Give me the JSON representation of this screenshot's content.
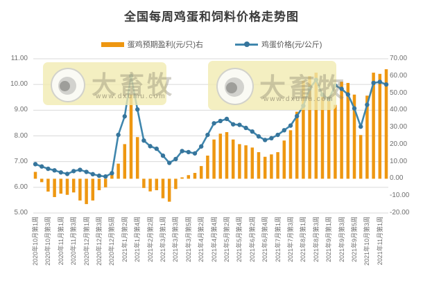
{
  "title": "全国每周鸡蛋和饲料价格走势图",
  "legend": {
    "bar_label": "蛋鸡预期盈利(元/只)右",
    "line_label": "鸡蛋价格(元/公斤)"
  },
  "watermark": {
    "brand": "大畜牧",
    "url": "www.dxumu.com"
  },
  "colors": {
    "bar": "#ee9711",
    "line": "#3f86ad",
    "marker": "#36759c",
    "grid": "#d9d9d9",
    "axis_text": "#6e6e6e",
    "title_text": "#3b3b3b",
    "watermark_bg": "#f1eab0"
  },
  "chart_data": {
    "type": "bar",
    "subtype": "combo-bar-line",
    "title": "全国每周鸡蛋和饲料价格走势图",
    "grid": true,
    "legend_position": "top",
    "x_labels": [
      "2020年10月第1周",
      "2020年10月第3周",
      "2020年11月第1周",
      "2020年11月第3周",
      "2020年12月第1周",
      "2020年12月第3周",
      "2020年12月第5周",
      "2021年1月第2周",
      "2021年1月第4周",
      "2021年2月第2周",
      "2021年3月第1周",
      "2021年3月第3周",
      "2021年3月第5周",
      "2021年4月第2周",
      "2021年4月第4周",
      "2021年5月第2周",
      "2021年5月第4周",
      "2021年6月第2周",
      "2021年6月第4周",
      "2021年7月第1周",
      "2021年7月第3周",
      "2021年8月第1周",
      "2021年8月第3周",
      "2021年9月第1周",
      "2021年9月第3周",
      "2021年9月第5周",
      "2021年10月第3周",
      "2021年11月第1周"
    ],
    "x_label_every_n_points": 2,
    "left_axis": {
      "label": "鸡蛋价格(元/公斤)",
      "min": 5,
      "max": 11,
      "ticks": [
        "11.00",
        "10.00",
        "9.00",
        "8.00",
        "7.00",
        "6.00",
        "5.00"
      ]
    },
    "right_axis": {
      "label": "蛋鸡预期盈利(元/只)",
      "min": -20,
      "max": 70,
      "ticks": [
        "70.00",
        "60.00",
        "50.00",
        "40.00",
        "30.00",
        "20.00",
        "10.00",
        "0.00",
        "-10.00",
        "-20.00"
      ]
    },
    "series": [
      {
        "name": "蛋鸡预期盈利(元/只)右",
        "type": "bar",
        "axis": "right",
        "values": [
          4.0,
          -2.0,
          -7.5,
          -10.7,
          -8.7,
          -9.4,
          -8.0,
          -12.7,
          -14.8,
          -12.7,
          -6.7,
          -5.0,
          3.4,
          8.8,
          20.2,
          49.1,
          24.3,
          -5.4,
          -7.4,
          -6.7,
          -11.4,
          -13.4,
          -6.0,
          0.8,
          2.1,
          3.4,
          7.4,
          13.5,
          22.9,
          26.3,
          27.2,
          22.9,
          20.2,
          19.5,
          18.2,
          15.5,
          12.8,
          14.2,
          15.5,
          22.3,
          28.3,
          39.1,
          57.2,
          59.9,
          61.9,
          47.8,
          45.8,
          43.1,
          56.6,
          55.9,
          49.1,
          25.5,
          48.5,
          61.9,
          61.2,
          63.9
        ]
      },
      {
        "name": "鸡蛋价格(元/公斤)",
        "type": "line",
        "axis": "left",
        "values": [
          6.9,
          6.81,
          6.72,
          6.66,
          6.58,
          6.52,
          6.63,
          6.68,
          6.6,
          6.51,
          6.45,
          6.42,
          6.55,
          8.04,
          8.76,
          10.33,
          9.03,
          7.82,
          7.6,
          7.5,
          7.23,
          6.95,
          7.1,
          7.41,
          7.37,
          7.32,
          7.59,
          8.04,
          8.49,
          8.58,
          8.66,
          8.45,
          8.43,
          8.31,
          8.17,
          7.98,
          7.84,
          7.91,
          8.04,
          8.22,
          8.4,
          8.77,
          9.17,
          9.84,
          10.18,
          9.6,
          9.43,
          9.96,
          9.83,
          9.61,
          9.07,
          8.36,
          9.21,
          10.06,
          10.1,
          10.0
        ]
      }
    ]
  }
}
